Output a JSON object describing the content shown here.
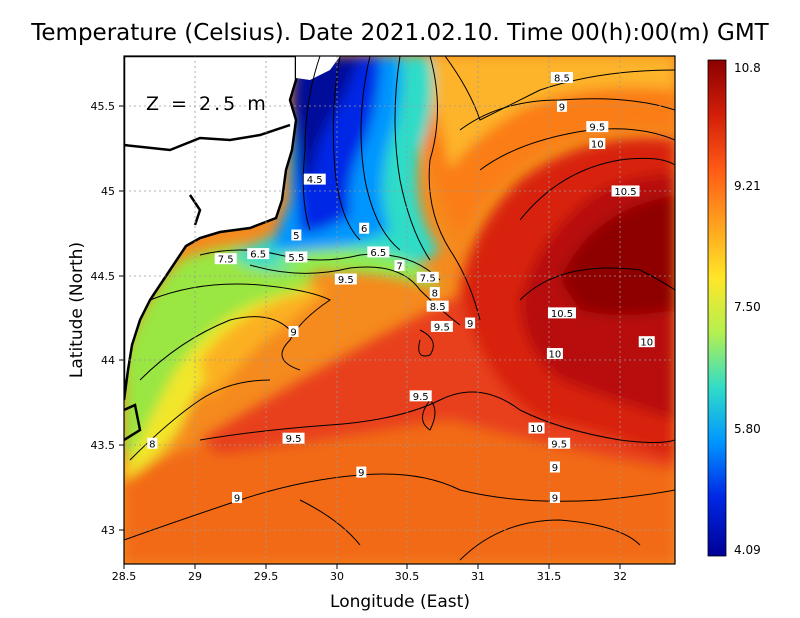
{
  "chart_data": {
    "type": "heatmap",
    "title": "Temperature (Celsius). Date 2021.02.10. Time 00(h):00(m) GMT",
    "annotation": "Z = 2.5 m",
    "xlabel": "Longitude (East)",
    "ylabel": "Latitude (North)",
    "xlim": [
      28.5,
      32.4
    ],
    "ylim": [
      42.8,
      45.8
    ],
    "x_ticks": [
      "28.5",
      "29",
      "29.5",
      "30",
      "30.5",
      "31",
      "31.5",
      "32"
    ],
    "y_ticks": [
      "43",
      "43.5",
      "44",
      "44.5",
      "45",
      "45.5"
    ],
    "grid": true,
    "colorbar": {
      "min": 4.09,
      "max": 10.8,
      "tick_labels": [
        "10.8",
        "9.21",
        "7.50",
        "5.80",
        "4.09"
      ],
      "colors": [
        "#8b0000",
        "#d21e0a",
        "#ff5a14",
        "#ffa01e",
        "#ffe628",
        "#b4f050",
        "#32dcc8",
        "#0096ff",
        "#0028e6",
        "#000096"
      ]
    },
    "contour_labels": [
      {
        "text": "8.5",
        "x": 31.6,
        "y": 45.67
      },
      {
        "text": "9",
        "x": 31.6,
        "y": 45.5
      },
      {
        "text": "9.5",
        "x": 31.85,
        "y": 45.38
      },
      {
        "text": "10",
        "x": 31.85,
        "y": 45.28
      },
      {
        "text": "10.5",
        "x": 32.05,
        "y": 45.0
      },
      {
        "text": "4.5",
        "x": 29.85,
        "y": 45.07
      },
      {
        "text": "5",
        "x": 29.72,
        "y": 44.74
      },
      {
        "text": "6",
        "x": 30.2,
        "y": 44.78
      },
      {
        "text": "6.5",
        "x": 29.45,
        "y": 44.63
      },
      {
        "text": "5.5",
        "x": 29.72,
        "y": 44.61
      },
      {
        "text": "6.5",
        "x": 30.3,
        "y": 44.64
      },
      {
        "text": "7",
        "x": 30.45,
        "y": 44.56
      },
      {
        "text": "7.5",
        "x": 29.22,
        "y": 44.6
      },
      {
        "text": "9.5",
        "x": 30.07,
        "y": 44.48
      },
      {
        "text": "7.5",
        "x": 30.65,
        "y": 44.49
      },
      {
        "text": "8",
        "x": 30.7,
        "y": 44.4
      },
      {
        "text": "8.5",
        "x": 30.72,
        "y": 44.32
      },
      {
        "text": "9.5",
        "x": 30.75,
        "y": 44.2
      },
      {
        "text": "9",
        "x": 30.95,
        "y": 44.22
      },
      {
        "text": "10.5",
        "x": 31.6,
        "y": 44.28
      },
      {
        "text": "9",
        "x": 29.7,
        "y": 44.17
      },
      {
        "text": "10",
        "x": 31.55,
        "y": 44.04
      },
      {
        "text": "10",
        "x": 32.2,
        "y": 44.11
      },
      {
        "text": "9.5",
        "x": 30.6,
        "y": 43.79
      },
      {
        "text": "10",
        "x": 31.42,
        "y": 43.6
      },
      {
        "text": "9.5",
        "x": 29.7,
        "y": 43.54
      },
      {
        "text": "9.5",
        "x": 31.58,
        "y": 43.51
      },
      {
        "text": "8",
        "x": 28.7,
        "y": 43.51
      },
      {
        "text": "9",
        "x": 30.18,
        "y": 43.34
      },
      {
        "text": "9",
        "x": 31.55,
        "y": 43.37
      },
      {
        "text": "9",
        "x": 29.3,
        "y": 43.19
      },
      {
        "text": "9",
        "x": 31.55,
        "y": 43.19
      }
    ]
  }
}
